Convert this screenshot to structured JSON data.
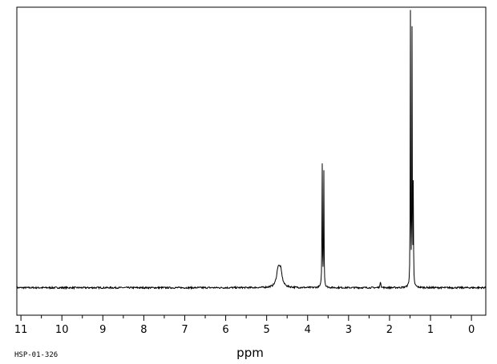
{
  "sample_id": "HSP-01-326",
  "chart_data": {
    "type": "line",
    "title": "",
    "xlabel": "ppm",
    "ylabel": "",
    "xlim": [
      11.1,
      -0.35
    ],
    "ylim": [
      -0.1,
      1.02
    ],
    "x_reversed": true,
    "grid": false,
    "x_ticks": [
      11,
      10,
      9,
      8,
      7,
      6,
      5,
      4,
      3,
      2,
      1,
      0
    ],
    "x_tick_labels": [
      "11",
      "10",
      "9",
      "8",
      "7",
      "6",
      "5",
      "4",
      "3",
      "2",
      "1",
      "0"
    ],
    "baseline": 0.0,
    "series": [
      {
        "peaks": [
          {
            "x": 4.72,
            "y": 0.06,
            "width": 0.09
          },
          {
            "x": 4.66,
            "y": 0.055,
            "width": 0.09
          },
          {
            "x": 3.645,
            "y": 0.5,
            "width": 0.012
          },
          {
            "x": 3.605,
            "y": 0.44,
            "width": 0.012
          },
          {
            "x": 2.22,
            "y": 0.025,
            "width": 0.02
          },
          {
            "x": 1.49,
            "y": 0.99,
            "width": 0.011
          },
          {
            "x": 1.45,
            "y": 0.935,
            "width": 0.011
          },
          {
            "x": 1.42,
            "y": 0.37,
            "width": 0.011
          }
        ]
      }
    ]
  }
}
